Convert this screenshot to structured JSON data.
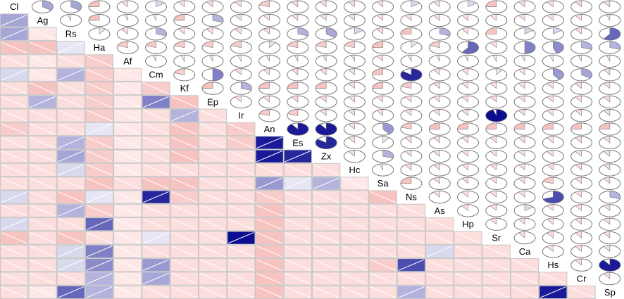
{
  "chart_data": {
    "type": "corrgram",
    "variables": [
      "Cl",
      "Ag",
      "Rs",
      "Ha",
      "Af",
      "Cm",
      "Kf",
      "Ep",
      "Ir",
      "An",
      "Es",
      "Zx",
      "Hc",
      "Sa",
      "Ns",
      "As",
      "Hp",
      "Sr",
      "Ca",
      "Hs",
      "Cr",
      "Sp"
    ],
    "correlations": [
      [
        0.35
      ],
      [
        0.35,
        -0.05
      ],
      [
        -0.25,
        -0.25,
        0.1
      ],
      [
        -0.1,
        -0.05,
        -0.1,
        -0.2
      ],
      [
        0.15,
        -0.05,
        0.3,
        -0.2,
        -0.05
      ],
      [
        -0.1,
        -0.25,
        -0.1,
        -0.2,
        -0.05,
        -0.2
      ],
      [
        -0.1,
        0.3,
        -0.1,
        -0.2,
        -0.05,
        0.5,
        -0.25
      ],
      [
        -0.1,
        -0.1,
        -0.1,
        -0.2,
        -0.05,
        -0.1,
        0.3,
        -0.1
      ],
      [
        -0.2,
        -0.1,
        -0.1,
        0.1,
        -0.05,
        -0.1,
        -0.25,
        -0.1,
        -0.2
      ],
      [
        -0.1,
        -0.1,
        0.3,
        -0.2,
        -0.05,
        -0.1,
        -0.25,
        -0.1,
        -0.2,
        0.9
      ],
      [
        -0.1,
        -0.1,
        0.35,
        -0.2,
        -0.05,
        -0.1,
        -0.25,
        -0.1,
        -0.1,
        0.9,
        0.85
      ],
      [
        -0.1,
        -0.1,
        0.15,
        -0.2,
        -0.05,
        -0.1,
        -0.1,
        -0.1,
        -0.1,
        -0.1,
        -0.1,
        -0.1
      ],
      [
        -0.1,
        -0.1,
        -0.1,
        -0.25,
        -0.1,
        -0.25,
        -0.25,
        -0.1,
        -0.1,
        0.4,
        0.1,
        0.3,
        -0.05
      ],
      [
        0.15,
        -0.1,
        -0.25,
        0.1,
        -0.05,
        0.85,
        -0.2,
        -0.1,
        -0.1,
        -0.2,
        -0.1,
        -0.1,
        -0.1,
        -0.25
      ],
      [
        -0.1,
        -0.1,
        0.3,
        -0.2,
        -0.05,
        -0.1,
        -0.1,
        -0.1,
        -0.1,
        -0.25,
        -0.1,
        -0.1,
        -0.1,
        -0.1,
        -0.1
      ],
      [
        0.15,
        -0.1,
        -0.1,
        0.6,
        -0.05,
        -0.1,
        -0.1,
        -0.1,
        -0.1,
        -0.25,
        -0.1,
        -0.1,
        -0.1,
        -0.1,
        -0.1,
        -0.1
      ],
      [
        -0.25,
        -0.1,
        -0.25,
        -0.1,
        -0.05,
        0.1,
        -0.1,
        -0.1,
        0.95,
        -0.25,
        -0.1,
        -0.1,
        -0.1,
        -0.1,
        -0.1,
        -0.1,
        -0.1
      ],
      [
        -0.1,
        -0.1,
        0.15,
        0.5,
        -0.05,
        -0.1,
        -0.1,
        -0.1,
        -0.1,
        -0.25,
        -0.1,
        -0.1,
        -0.1,
        -0.1,
        -0.1,
        0.15,
        -0.1,
        -0.1
      ],
      [
        -0.1,
        -0.1,
        0.15,
        0.45,
        -0.05,
        0.4,
        -0.1,
        -0.1,
        -0.1,
        -0.25,
        -0.1,
        -0.1,
        -0.1,
        -0.2,
        0.7,
        -0.1,
        -0.1,
        -0.1,
        -0.1
      ],
      [
        -0.1,
        -0.1,
        -0.1,
        0.3,
        -0.05,
        0.35,
        -0.1,
        -0.1,
        -0.1,
        -0.25,
        -0.1,
        -0.1,
        -0.1,
        -0.1,
        -0.1,
        -0.1,
        -0.1,
        -0.1,
        -0.1,
        -0.1
      ],
      [
        -0.1,
        -0.05,
        0.6,
        0.3,
        -0.05,
        -0.1,
        -0.1,
        -0.1,
        -0.1,
        -0.25,
        -0.1,
        -0.1,
        -0.1,
        -0.1,
        0.3,
        -0.1,
        -0.1,
        -0.1,
        -0.1,
        0.9,
        -0.1
      ]
    ]
  }
}
